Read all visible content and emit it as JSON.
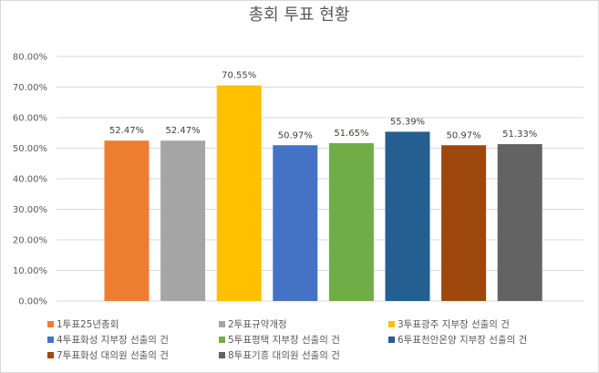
{
  "chart_data": {
    "type": "bar",
    "title": "총회 투표 현황",
    "categories": [
      "1투표25년총회",
      "2투표규약개정",
      "3투표광주 지부장 선출의 건",
      "4투표화성 지부장 선출의 건",
      "5투표평택 지부장 선출의 건",
      "6투표천안온양 지부장 선출의 건",
      "7투표화성 대의원 선출의 건",
      "8투표기흥 대의원 선출의 건"
    ],
    "values": [
      52.47,
      52.47,
      70.55,
      50.97,
      51.65,
      55.39,
      50.97,
      51.33
    ],
    "value_labels": [
      "52.47%",
      "52.47%",
      "70.55%",
      "50.97%",
      "51.65%",
      "55.39%",
      "50.97%",
      "51.33%"
    ],
    "colors": [
      "#ED7D31",
      "#A5A5A5",
      "#FFC000",
      "#4472C4",
      "#70AD47",
      "#255E91",
      "#9E480E",
      "#636363"
    ],
    "ylim": [
      0,
      80
    ],
    "yticks": [
      0,
      10,
      20,
      30,
      40,
      50,
      60,
      70,
      80
    ],
    "ytick_labels": [
      "0.00%",
      "10.00%",
      "20.00%",
      "30.00%",
      "40.00%",
      "50.00%",
      "60.00%",
      "70.00%",
      "80.00%"
    ],
    "grid": true,
    "legend_position": "bottom",
    "xlabel": "",
    "ylabel": ""
  }
}
